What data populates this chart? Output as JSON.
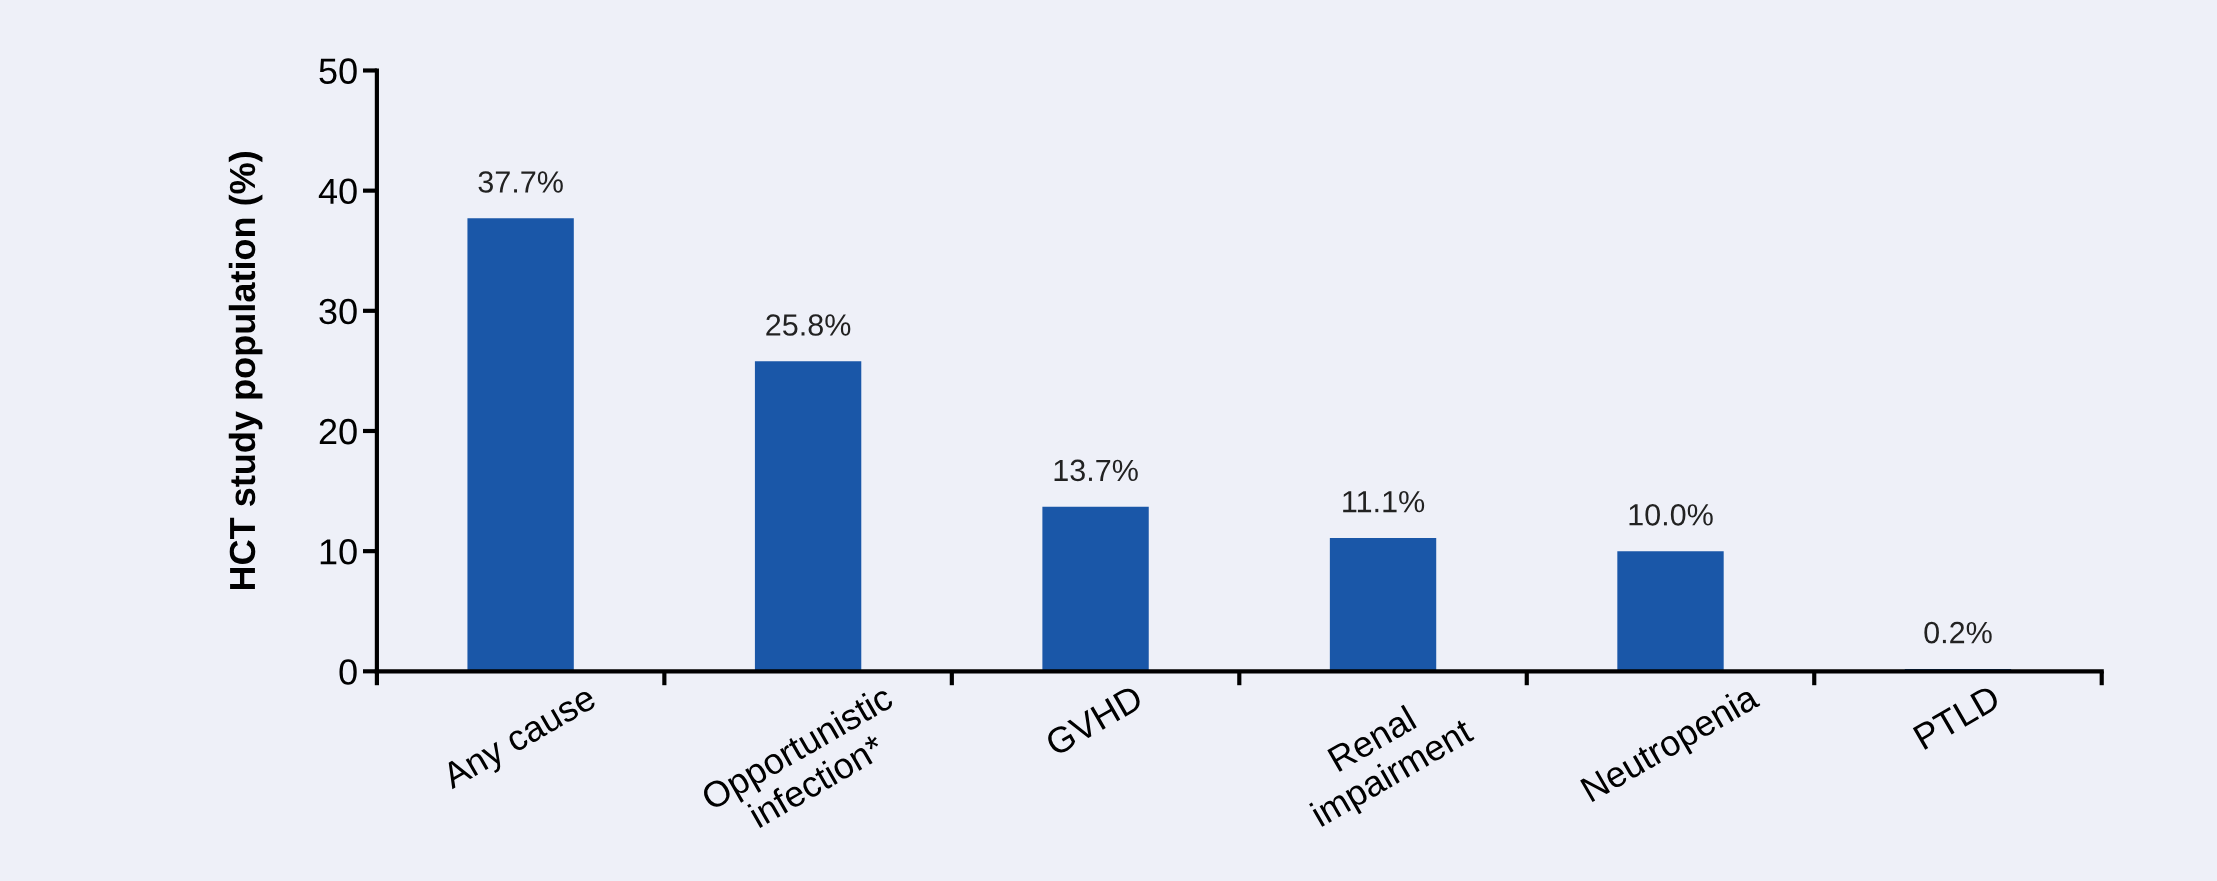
{
  "chart_data": {
    "type": "bar",
    "ylabel": "HCT study population (%)",
    "categories": [
      "Any cause",
      "Opportunistic\ninfection*",
      "GVHD",
      "Renal\nimpairment",
      "Neutropenia",
      "PTLD"
    ],
    "values": [
      37.7,
      25.8,
      13.7,
      11.1,
      10.0,
      0.2
    ],
    "value_labels": [
      "37.7%",
      "25.8%",
      "13.7%",
      "11.1%",
      "10.0%",
      "0.2%"
    ],
    "color": "#1a57a8",
    "ylim": [
      0,
      50
    ],
    "yticks": [
      0,
      10,
      20,
      30,
      40,
      50
    ],
    "grid": false,
    "legend": false
  }
}
